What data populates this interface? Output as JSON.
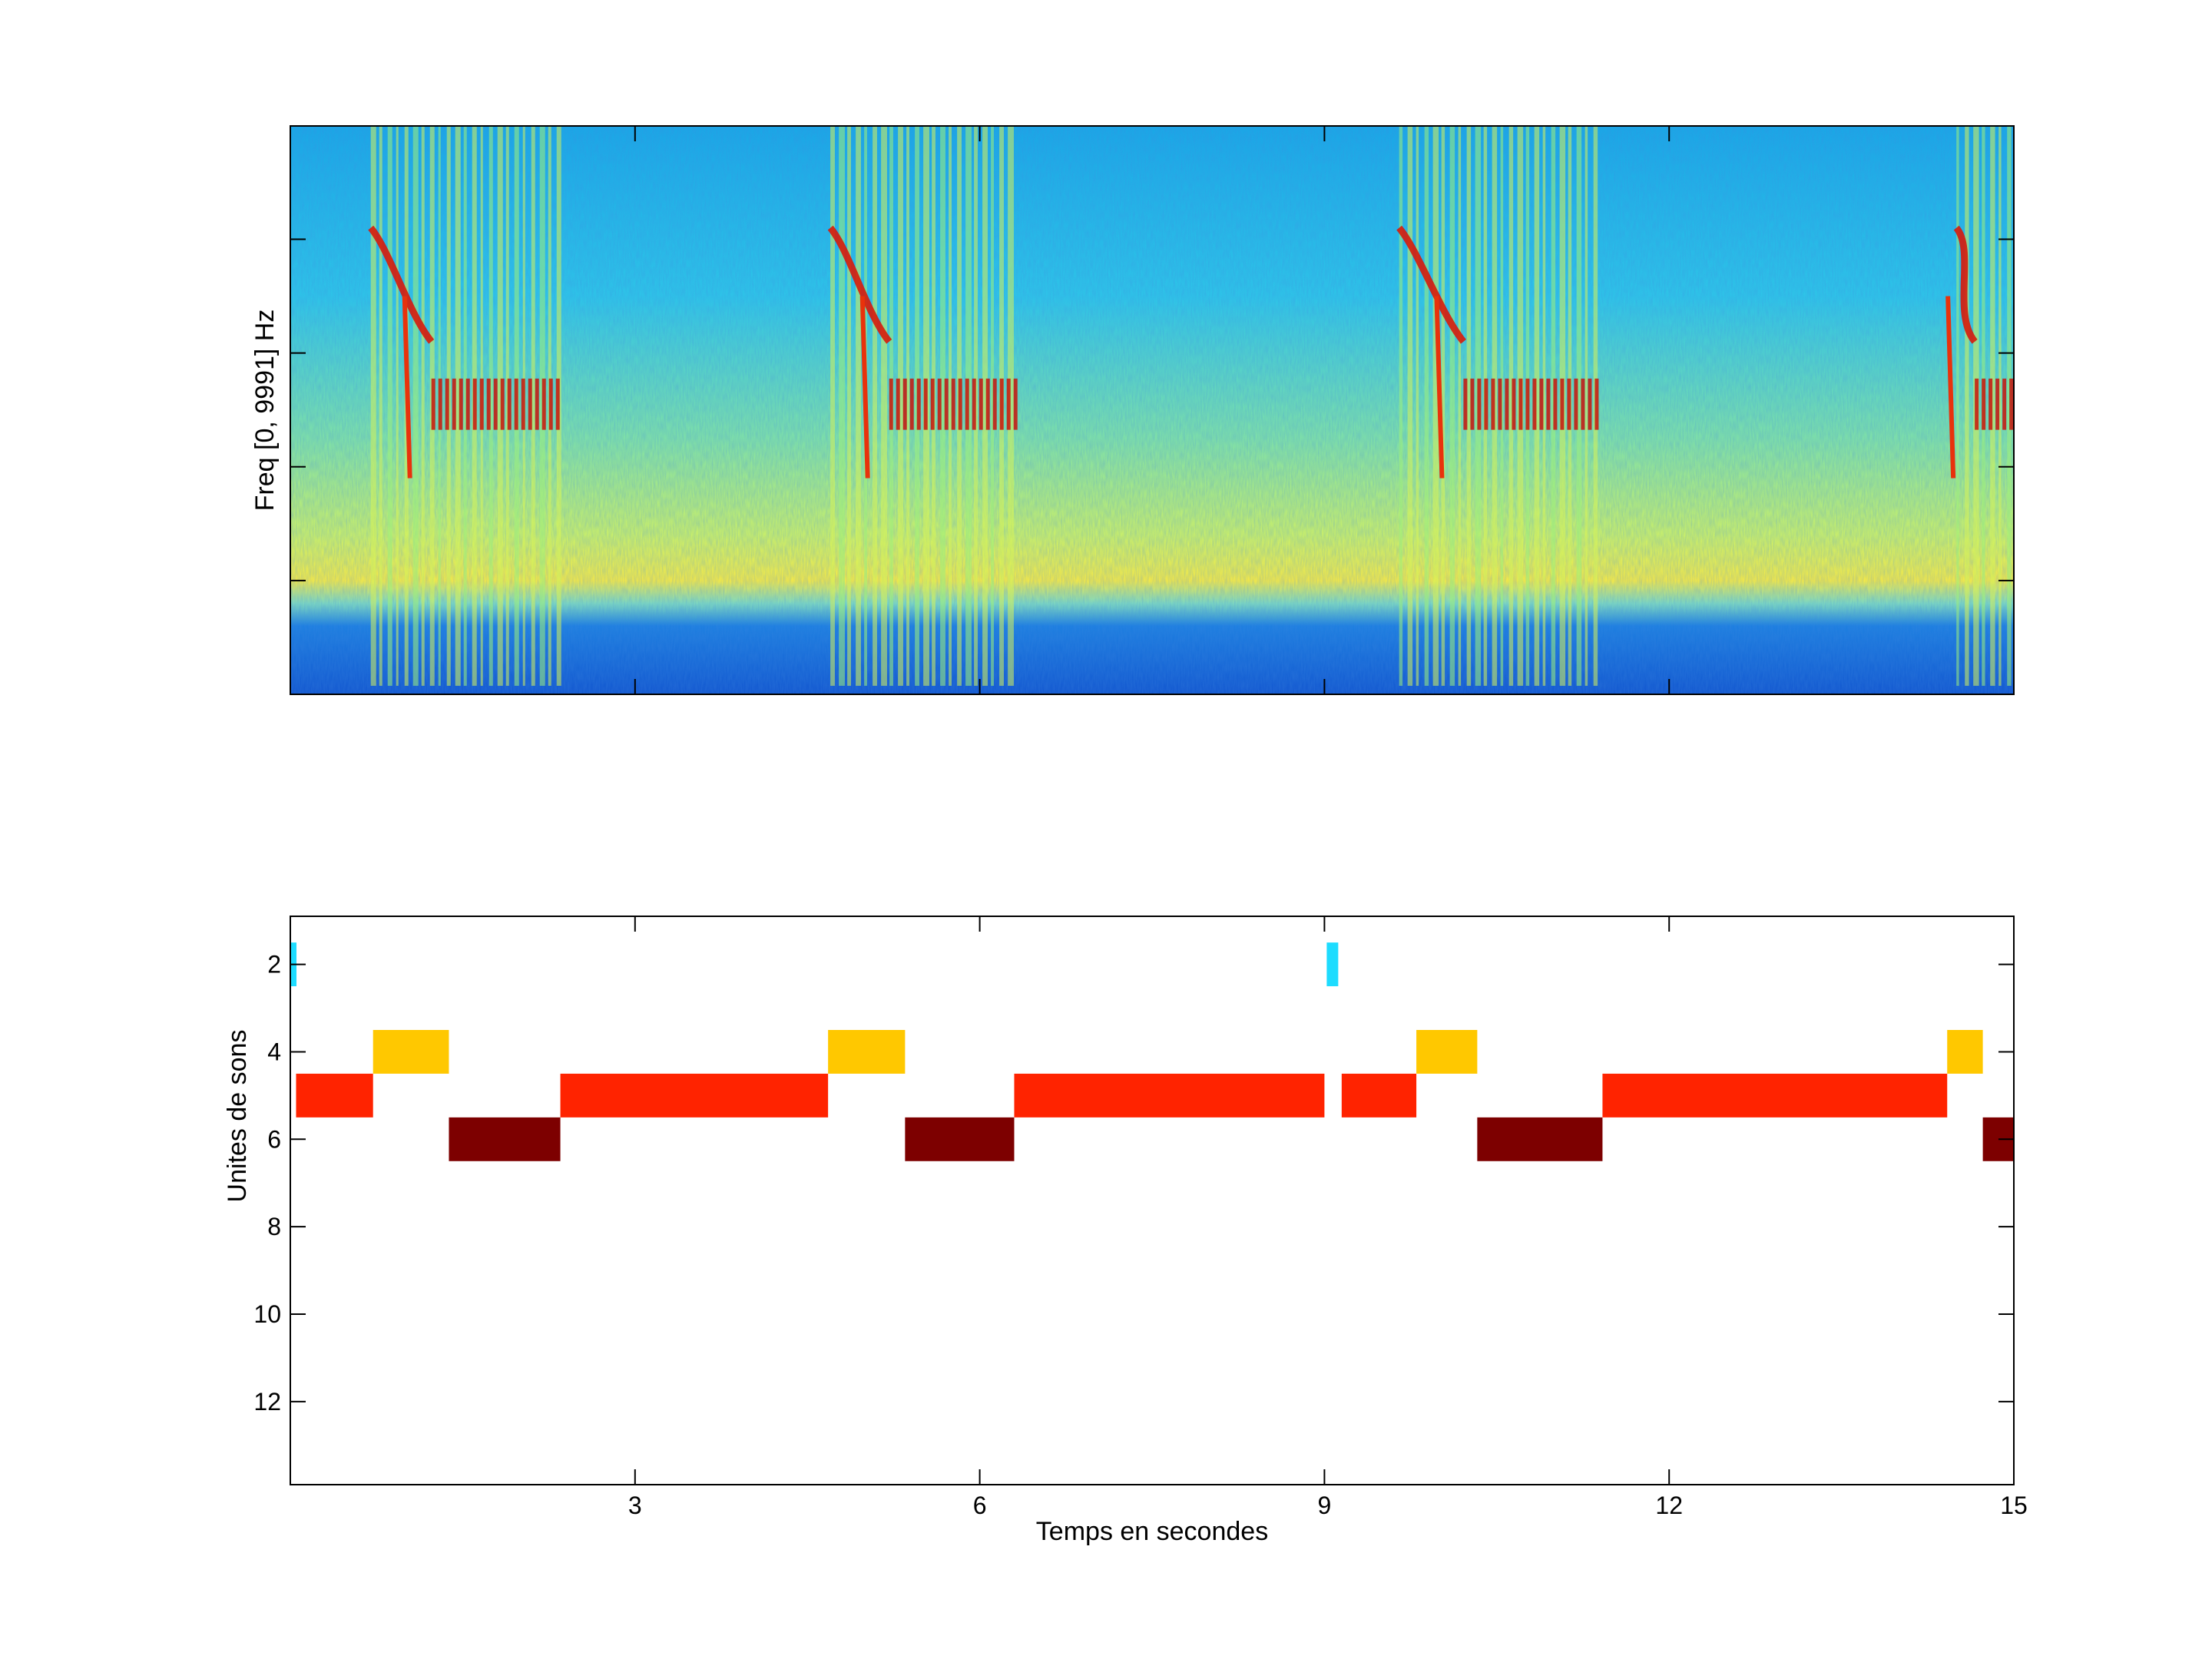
{
  "chart_data": [
    {
      "type": "heatmap",
      "name": "spectrogram",
      "ylabel": "Freq [0, 9991] Hz",
      "xlim": [
        0,
        15
      ],
      "ylim": [
        0,
        9991
      ],
      "colormap": "jet",
      "grid": false,
      "calls": [
        {
          "start": 0.7,
          "end": 2.35
        },
        {
          "start": 4.7,
          "end": 6.3
        },
        {
          "start": 9.65,
          "end": 11.4
        },
        {
          "start": 14.5,
          "end": 15.0
        }
      ]
    },
    {
      "type": "table",
      "name": "sound-units",
      "xlabel": "Temps en secondes",
      "ylabel": "Unites de sons",
      "xlim": [
        0,
        15
      ],
      "ylim": [
        0.9,
        13.9
      ],
      "xticks": [
        "3",
        "6",
        "9",
        "12",
        "15"
      ],
      "yticks": [
        "2",
        "4",
        "6",
        "8",
        "10",
        "12"
      ],
      "grid": false,
      "unit_colors": {
        "2": "#1edcff",
        "4": "#ffc800",
        "5": "#ff2300",
        "6": "#7d0000"
      },
      "segments": [
        {
          "unit": 2,
          "start": 0.0,
          "end": 0.05
        },
        {
          "unit": 5,
          "start": 0.05,
          "end": 0.72
        },
        {
          "unit": 4,
          "start": 0.72,
          "end": 1.38
        },
        {
          "unit": 6,
          "start": 1.38,
          "end": 2.35
        },
        {
          "unit": 5,
          "start": 2.35,
          "end": 4.68
        },
        {
          "unit": 4,
          "start": 4.68,
          "end": 5.35
        },
        {
          "unit": 6,
          "start": 5.35,
          "end": 6.3
        },
        {
          "unit": 5,
          "start": 6.3,
          "end": 9.0
        },
        {
          "unit": 2,
          "start": 9.02,
          "end": 9.12
        },
        {
          "unit": 5,
          "start": 9.15,
          "end": 9.8
        },
        {
          "unit": 4,
          "start": 9.8,
          "end": 10.33
        },
        {
          "unit": 6,
          "start": 10.33,
          "end": 11.42
        },
        {
          "unit": 5,
          "start": 11.42,
          "end": 14.42
        },
        {
          "unit": 4,
          "start": 14.42,
          "end": 14.73
        },
        {
          "unit": 6,
          "start": 14.73,
          "end": 15.0
        }
      ]
    }
  ]
}
